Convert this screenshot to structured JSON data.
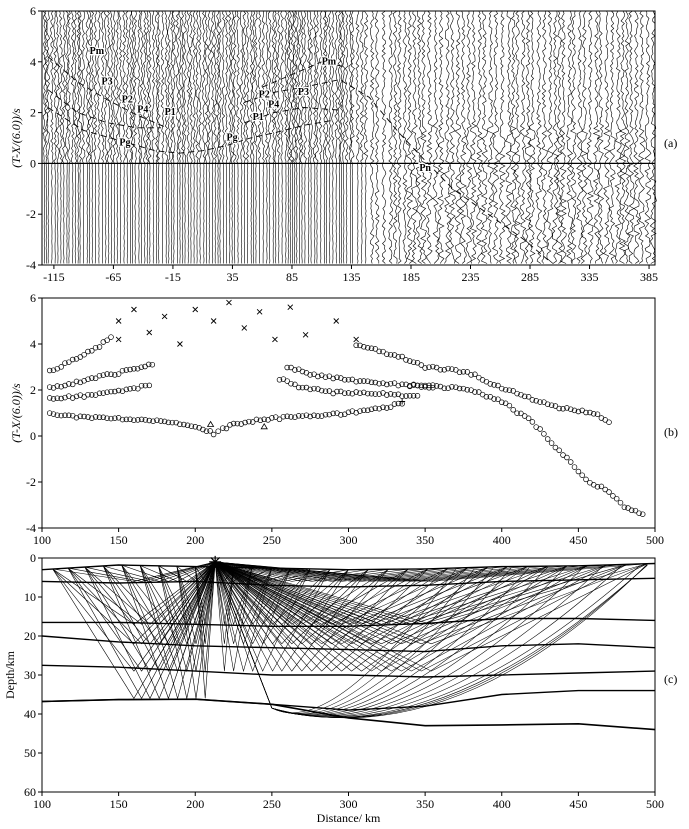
{
  "chart_data": [
    {
      "panel": "(a)",
      "type": "seismic-record-section",
      "ylabel": "(T-X/(6.0))/s",
      "xlim": [
        -125,
        390
      ],
      "ylim": [
        -4,
        6
      ],
      "xticks": [
        "-115",
        "-65",
        "-15",
        "35",
        "85",
        "135",
        "185",
        "235",
        "285",
        "335",
        "385"
      ],
      "yticks": [
        "-4",
        "-2",
        "0",
        "2",
        "4",
        "6"
      ],
      "phase_labels": [
        {
          "text": "Pm",
          "x": -85,
          "y": 4.3
        },
        {
          "text": "P3",
          "x": -75,
          "y": 3.1
        },
        {
          "text": "P2",
          "x": -58,
          "y": 2.4
        },
        {
          "text": "P4",
          "x": -45,
          "y": 2.0
        },
        {
          "text": "P1",
          "x": -22,
          "y": 1.9
        },
        {
          "text": "Pg",
          "x": -60,
          "y": 0.7
        },
        {
          "text": "Pg",
          "x": 30,
          "y": 0.9
        },
        {
          "text": "P1",
          "x": 52,
          "y": 1.7
        },
        {
          "text": "P4",
          "x": 65,
          "y": 2.2
        },
        {
          "text": "P2",
          "x": 57,
          "y": 2.6
        },
        {
          "text": "P3",
          "x": 90,
          "y": 2.7
        },
        {
          "text": "Pm",
          "x": 110,
          "y": 3.9
        },
        {
          "text": "Pn",
          "x": 192,
          "y": -0.3
        }
      ]
    },
    {
      "panel": "(b)",
      "type": "scatter",
      "ylabel": "(T-X/(6.0))/s",
      "xlim": [
        100,
        500
      ],
      "ylim": [
        -4,
        6
      ],
      "xticks": [
        "100",
        "150",
        "200",
        "250",
        "300",
        "350",
        "400",
        "450",
        "500"
      ],
      "yticks": [
        "-4",
        "-2",
        "0",
        "2",
        "4",
        "6"
      ],
      "series": [
        {
          "marker": "circle",
          "points": [
            [
              105,
              1.0
            ],
            [
              120,
              0.85
            ],
            [
              140,
              0.8
            ],
            [
              160,
              0.72
            ],
            [
              180,
              0.68
            ],
            [
              195,
              0.5
            ],
            [
              205,
              0.3
            ],
            [
              212,
              0.1
            ],
            [
              218,
              0.3
            ],
            [
              225,
              0.5
            ],
            [
              240,
              0.7
            ],
            [
              260,
              0.8
            ],
            [
              280,
              0.9
            ],
            [
              300,
              1.0
            ],
            [
              320,
              1.2
            ],
            [
              335,
              1.4
            ]
          ]
        },
        {
          "marker": "circle",
          "points": [
            [
              105,
              1.6
            ],
            [
              120,
              1.7
            ],
            [
              140,
              1.85
            ],
            [
              155,
              2.0
            ],
            [
              170,
              2.2
            ]
          ]
        },
        {
          "marker": "circle",
          "points": [
            [
              105,
              2.1
            ],
            [
              120,
              2.3
            ],
            [
              140,
              2.6
            ],
            [
              160,
              2.9
            ],
            [
              172,
              3.1
            ]
          ]
        },
        {
          "marker": "circle",
          "points": [
            [
              105,
              2.8
            ],
            [
              120,
              3.3
            ],
            [
              135,
              3.8
            ],
            [
              145,
              4.3
            ]
          ]
        },
        {
          "marker": "circle",
          "points": [
            [
              255,
              2.5
            ],
            [
              270,
              2.1
            ],
            [
              290,
              1.9
            ],
            [
              310,
              1.85
            ],
            [
              330,
              1.8
            ],
            [
              345,
              1.75
            ]
          ]
        },
        {
          "marker": "circle",
          "points": [
            [
              260,
              3.0
            ],
            [
              280,
              2.6
            ],
            [
              300,
              2.45
            ],
            [
              320,
              2.3
            ],
            [
              340,
              2.2
            ],
            [
              355,
              2.1
            ]
          ]
        },
        {
          "marker": "circle",
          "points": [
            [
              305,
              4.0
            ],
            [
              320,
              3.7
            ],
            [
              335,
              3.4
            ],
            [
              350,
              3.0
            ],
            [
              365,
              2.9
            ],
            [
              380,
              2.7
            ],
            [
              400,
              2.1
            ],
            [
              420,
              1.6
            ],
            [
              440,
              1.2
            ],
            [
              460,
              1.0
            ],
            [
              470,
              0.6
            ]
          ]
        },
        {
          "marker": "circle",
          "points": [
            [
              340,
              2.2
            ],
            [
              360,
              2.15
            ],
            [
              380,
              2.0
            ],
            [
              400,
              1.5
            ],
            [
              420,
              0.6
            ],
            [
              440,
              -0.8
            ],
            [
              455,
              -1.9
            ],
            [
              470,
              -2.4
            ],
            [
              480,
              -3.1
            ],
            [
              492,
              -3.4
            ]
          ]
        },
        {
          "marker": "x",
          "points": [
            [
              150,
              5.0
            ],
            [
              150,
              4.2
            ],
            [
              160,
              5.5
            ],
            [
              170,
              4.5
            ],
            [
              180,
              5.2
            ],
            [
              190,
              4.0
            ],
            [
              200,
              5.5
            ],
            [
              212,
              5.0
            ],
            [
              222,
              5.8
            ],
            [
              232,
              4.7
            ],
            [
              242,
              5.4
            ],
            [
              252,
              4.2
            ],
            [
              262,
              5.6
            ],
            [
              272,
              4.4
            ],
            [
              292,
              5.0
            ],
            [
              305,
              4.2
            ]
          ]
        },
        {
          "marker": "triangle",
          "points": [
            [
              210,
              0.5
            ],
            [
              245,
              0.4
            ]
          ]
        },
        {
          "marker": "plus",
          "points": [
            [
              335,
              1.5
            ]
          ]
        }
      ]
    },
    {
      "panel": "(c)",
      "type": "ray-tracing-model",
      "xlabel": "Distance/ km",
      "ylabel": "Depth/km",
      "xlim": [
        100,
        500
      ],
      "ylim": [
        60,
        0
      ],
      "xticks": [
        "100",
        "150",
        "200",
        "250",
        "300",
        "350",
        "400",
        "450",
        "500"
      ],
      "yticks": [
        "0",
        "10",
        "20",
        "30",
        "40",
        "50",
        "60"
      ],
      "source": {
        "x": 213,
        "depth": 1
      },
      "receivers_left": [
        107,
        117,
        128,
        140,
        152,
        164,
        176,
        188,
        200
      ],
      "receivers_right": [
        225,
        237,
        250,
        262,
        275,
        288,
        300,
        313,
        326,
        339,
        352,
        365,
        378,
        391,
        404,
        417,
        430,
        443,
        456,
        469,
        482,
        495
      ],
      "interfaces": [
        [
          [
            100,
            3
          ],
          [
            150,
            1.8
          ],
          [
            200,
            2.2
          ],
          [
            250,
            2.6
          ],
          [
            300,
            3
          ],
          [
            350,
            2.8
          ],
          [
            400,
            2.2
          ],
          [
            450,
            2.0
          ],
          [
            500,
            1.4
          ]
        ],
        [
          [
            100,
            6
          ],
          [
            150,
            6.4
          ],
          [
            200,
            6.0
          ],
          [
            250,
            7.0
          ],
          [
            300,
            7.4
          ],
          [
            350,
            7.0
          ],
          [
            400,
            6.0
          ],
          [
            450,
            5.6
          ],
          [
            500,
            5.2
          ]
        ],
        [
          [
            100,
            16.5
          ],
          [
            150,
            16.5
          ],
          [
            200,
            17
          ],
          [
            250,
            17.5
          ],
          [
            300,
            17.5
          ],
          [
            350,
            16.8
          ],
          [
            400,
            15.5
          ],
          [
            450,
            15.5
          ],
          [
            500,
            16
          ]
        ],
        [
          [
            100,
            20
          ],
          [
            150,
            21.5
          ],
          [
            200,
            22.5
          ],
          [
            250,
            23
          ],
          [
            300,
            23.5
          ],
          [
            350,
            24
          ],
          [
            400,
            22.5
          ],
          [
            450,
            22
          ],
          [
            500,
            23
          ]
        ],
        [
          [
            100,
            27.5
          ],
          [
            150,
            28
          ],
          [
            200,
            29
          ],
          [
            250,
            30
          ],
          [
            300,
            30
          ],
          [
            350,
            30.5
          ],
          [
            400,
            30
          ],
          [
            450,
            29.5
          ],
          [
            500,
            29
          ]
        ],
        [
          [
            100,
            36.8
          ],
          [
            150,
            36.3
          ],
          [
            200,
            36.2
          ],
          [
            250,
            37.5
          ],
          [
            300,
            39
          ],
          [
            350,
            38
          ],
          [
            400,
            35
          ],
          [
            450,
            34
          ],
          [
            500,
            34
          ]
        ],
        [
          [
            100,
            36.8
          ],
          [
            150,
            36.3
          ],
          [
            200,
            36.2
          ],
          [
            250,
            37.5
          ],
          [
            300,
            41
          ],
          [
            350,
            43
          ],
          [
            400,
            42.8
          ],
          [
            450,
            42.5
          ],
          [
            500,
            44
          ]
        ]
      ]
    }
  ],
  "panel_labels": [
    "(a)",
    "(b)",
    "(c)"
  ]
}
